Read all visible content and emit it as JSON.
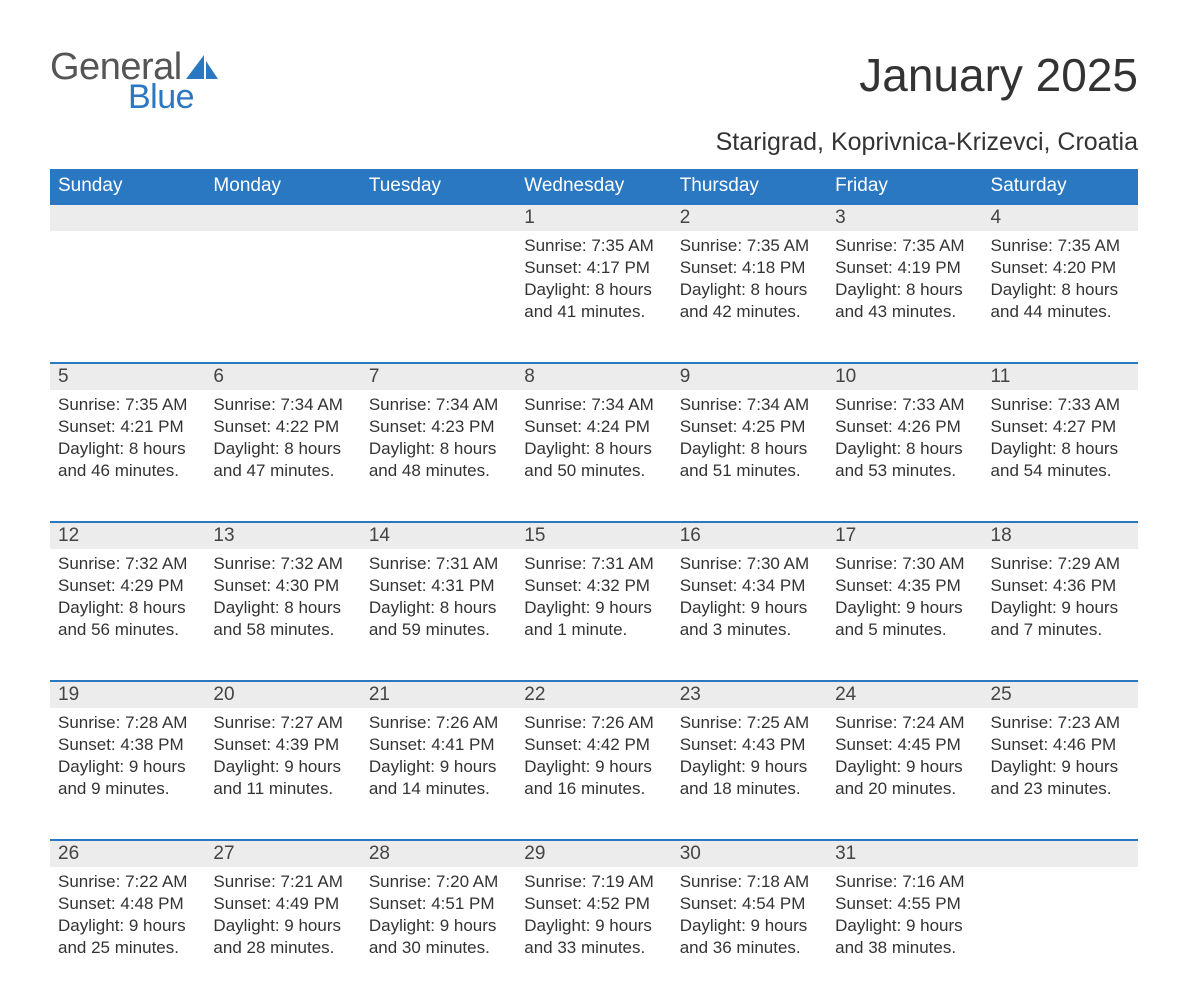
{
  "brand": {
    "part1": "General",
    "part2": "Blue",
    "part1_color": "#555555",
    "part2_color": "#2b78c2"
  },
  "header": {
    "title": "January 2025",
    "location": "Starigrad, Koprivnica-Krizevci, Croatia"
  },
  "colors": {
    "header_bg": "#2b78c2",
    "header_text": "#ffffff",
    "daynum_bg": "#ececec",
    "border_top": "#2b78c2",
    "body_text": "#333333"
  },
  "fonts": {
    "title_size": 46,
    "location_size": 25,
    "dayheader_size": 19,
    "cell_size": 17
  },
  "day_headers": [
    "Sunday",
    "Monday",
    "Tuesday",
    "Wednesday",
    "Thursday",
    "Friday",
    "Saturday"
  ],
  "weeks": [
    [
      null,
      null,
      null,
      {
        "n": "1",
        "sunrise": "Sunrise: 7:35 AM",
        "sunset": "Sunset: 4:17 PM",
        "dl1": "Daylight: 8 hours",
        "dl2": "and 41 minutes."
      },
      {
        "n": "2",
        "sunrise": "Sunrise: 7:35 AM",
        "sunset": "Sunset: 4:18 PM",
        "dl1": "Daylight: 8 hours",
        "dl2": "and 42 minutes."
      },
      {
        "n": "3",
        "sunrise": "Sunrise: 7:35 AM",
        "sunset": "Sunset: 4:19 PM",
        "dl1": "Daylight: 8 hours",
        "dl2": "and 43 minutes."
      },
      {
        "n": "4",
        "sunrise": "Sunrise: 7:35 AM",
        "sunset": "Sunset: 4:20 PM",
        "dl1": "Daylight: 8 hours",
        "dl2": "and 44 minutes."
      }
    ],
    [
      {
        "n": "5",
        "sunrise": "Sunrise: 7:35 AM",
        "sunset": "Sunset: 4:21 PM",
        "dl1": "Daylight: 8 hours",
        "dl2": "and 46 minutes."
      },
      {
        "n": "6",
        "sunrise": "Sunrise: 7:34 AM",
        "sunset": "Sunset: 4:22 PM",
        "dl1": "Daylight: 8 hours",
        "dl2": "and 47 minutes."
      },
      {
        "n": "7",
        "sunrise": "Sunrise: 7:34 AM",
        "sunset": "Sunset: 4:23 PM",
        "dl1": "Daylight: 8 hours",
        "dl2": "and 48 minutes."
      },
      {
        "n": "8",
        "sunrise": "Sunrise: 7:34 AM",
        "sunset": "Sunset: 4:24 PM",
        "dl1": "Daylight: 8 hours",
        "dl2": "and 50 minutes."
      },
      {
        "n": "9",
        "sunrise": "Sunrise: 7:34 AM",
        "sunset": "Sunset: 4:25 PM",
        "dl1": "Daylight: 8 hours",
        "dl2": "and 51 minutes."
      },
      {
        "n": "10",
        "sunrise": "Sunrise: 7:33 AM",
        "sunset": "Sunset: 4:26 PM",
        "dl1": "Daylight: 8 hours",
        "dl2": "and 53 minutes."
      },
      {
        "n": "11",
        "sunrise": "Sunrise: 7:33 AM",
        "sunset": "Sunset: 4:27 PM",
        "dl1": "Daylight: 8 hours",
        "dl2": "and 54 minutes."
      }
    ],
    [
      {
        "n": "12",
        "sunrise": "Sunrise: 7:32 AM",
        "sunset": "Sunset: 4:29 PM",
        "dl1": "Daylight: 8 hours",
        "dl2": "and 56 minutes."
      },
      {
        "n": "13",
        "sunrise": "Sunrise: 7:32 AM",
        "sunset": "Sunset: 4:30 PM",
        "dl1": "Daylight: 8 hours",
        "dl2": "and 58 minutes."
      },
      {
        "n": "14",
        "sunrise": "Sunrise: 7:31 AM",
        "sunset": "Sunset: 4:31 PM",
        "dl1": "Daylight: 8 hours",
        "dl2": "and 59 minutes."
      },
      {
        "n": "15",
        "sunrise": "Sunrise: 7:31 AM",
        "sunset": "Sunset: 4:32 PM",
        "dl1": "Daylight: 9 hours",
        "dl2": "and 1 minute."
      },
      {
        "n": "16",
        "sunrise": "Sunrise: 7:30 AM",
        "sunset": "Sunset: 4:34 PM",
        "dl1": "Daylight: 9 hours",
        "dl2": "and 3 minutes."
      },
      {
        "n": "17",
        "sunrise": "Sunrise: 7:30 AM",
        "sunset": "Sunset: 4:35 PM",
        "dl1": "Daylight: 9 hours",
        "dl2": "and 5 minutes."
      },
      {
        "n": "18",
        "sunrise": "Sunrise: 7:29 AM",
        "sunset": "Sunset: 4:36 PM",
        "dl1": "Daylight: 9 hours",
        "dl2": "and 7 minutes."
      }
    ],
    [
      {
        "n": "19",
        "sunrise": "Sunrise: 7:28 AM",
        "sunset": "Sunset: 4:38 PM",
        "dl1": "Daylight: 9 hours",
        "dl2": "and 9 minutes."
      },
      {
        "n": "20",
        "sunrise": "Sunrise: 7:27 AM",
        "sunset": "Sunset: 4:39 PM",
        "dl1": "Daylight: 9 hours",
        "dl2": "and 11 minutes."
      },
      {
        "n": "21",
        "sunrise": "Sunrise: 7:26 AM",
        "sunset": "Sunset: 4:41 PM",
        "dl1": "Daylight: 9 hours",
        "dl2": "and 14 minutes."
      },
      {
        "n": "22",
        "sunrise": "Sunrise: 7:26 AM",
        "sunset": "Sunset: 4:42 PM",
        "dl1": "Daylight: 9 hours",
        "dl2": "and 16 minutes."
      },
      {
        "n": "23",
        "sunrise": "Sunrise: 7:25 AM",
        "sunset": "Sunset: 4:43 PM",
        "dl1": "Daylight: 9 hours",
        "dl2": "and 18 minutes."
      },
      {
        "n": "24",
        "sunrise": "Sunrise: 7:24 AM",
        "sunset": "Sunset: 4:45 PM",
        "dl1": "Daylight: 9 hours",
        "dl2": "and 20 minutes."
      },
      {
        "n": "25",
        "sunrise": "Sunrise: 7:23 AM",
        "sunset": "Sunset: 4:46 PM",
        "dl1": "Daylight: 9 hours",
        "dl2": "and 23 minutes."
      }
    ],
    [
      {
        "n": "26",
        "sunrise": "Sunrise: 7:22 AM",
        "sunset": "Sunset: 4:48 PM",
        "dl1": "Daylight: 9 hours",
        "dl2": "and 25 minutes."
      },
      {
        "n": "27",
        "sunrise": "Sunrise: 7:21 AM",
        "sunset": "Sunset: 4:49 PM",
        "dl1": "Daylight: 9 hours",
        "dl2": "and 28 minutes."
      },
      {
        "n": "28",
        "sunrise": "Sunrise: 7:20 AM",
        "sunset": "Sunset: 4:51 PM",
        "dl1": "Daylight: 9 hours",
        "dl2": "and 30 minutes."
      },
      {
        "n": "29",
        "sunrise": "Sunrise: 7:19 AM",
        "sunset": "Sunset: 4:52 PM",
        "dl1": "Daylight: 9 hours",
        "dl2": "and 33 minutes."
      },
      {
        "n": "30",
        "sunrise": "Sunrise: 7:18 AM",
        "sunset": "Sunset: 4:54 PM",
        "dl1": "Daylight: 9 hours",
        "dl2": "and 36 minutes."
      },
      {
        "n": "31",
        "sunrise": "Sunrise: 7:16 AM",
        "sunset": "Sunset: 4:55 PM",
        "dl1": "Daylight: 9 hours",
        "dl2": "and 38 minutes."
      },
      null
    ]
  ]
}
